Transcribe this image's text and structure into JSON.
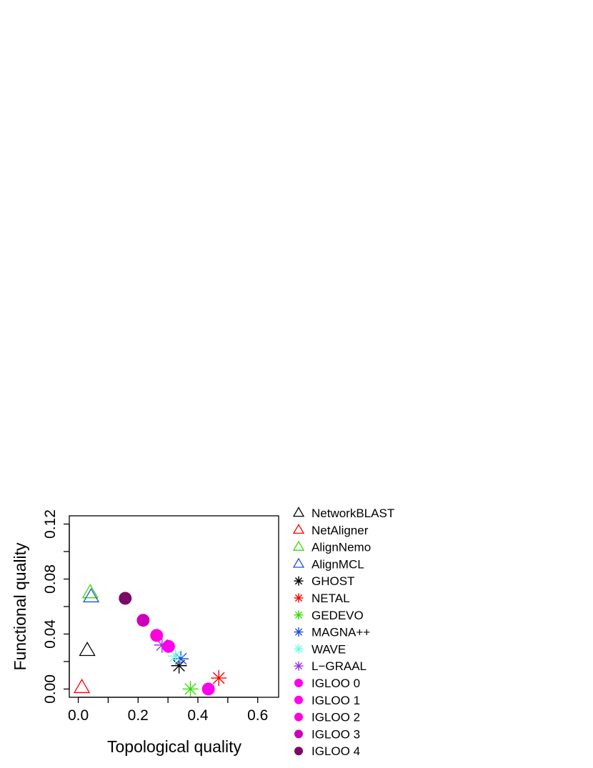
{
  "chart_data": {
    "type": "scatter",
    "title": "",
    "xlabel": "Topological quality",
    "ylabel": "Functional quality",
    "xlim": [
      -0.03,
      0.67
    ],
    "ylim": [
      -0.006,
      0.126
    ],
    "xticks": [
      0.0,
      0.1,
      0.2,
      0.3,
      0.4,
      0.5,
      0.6
    ],
    "xtick_labels": [
      "0.0",
      "",
      "0.2",
      "",
      "0.4",
      "",
      "0.6"
    ],
    "yticks": [
      0.0,
      0.02,
      0.04,
      0.06,
      0.08,
      0.1,
      0.12
    ],
    "ytick_labels": [
      "0.00",
      "",
      "0.04",
      "",
      "0.08",
      "",
      "0.12"
    ],
    "grid": false,
    "legend_position": "right",
    "series": [
      {
        "name": "NetworkBLAST",
        "marker": "triangle",
        "color": "#000000",
        "x": 0.03,
        "y": 0.028
      },
      {
        "name": "NetAligner",
        "marker": "triangle",
        "color": "#ff0000",
        "x": 0.012,
        "y": 0.001
      },
      {
        "name": "AlignNemo",
        "marker": "triangle",
        "color": "#33dd00",
        "x": 0.04,
        "y": 0.07
      },
      {
        "name": "AlignMCL",
        "marker": "triangle",
        "color": "#1f4fe0",
        "x": 0.043,
        "y": 0.067
      },
      {
        "name": "GHOST",
        "marker": "asterisk",
        "color": "#000000",
        "x": 0.337,
        "y": 0.017
      },
      {
        "name": "NETAL",
        "marker": "asterisk",
        "color": "#ff0000",
        "x": 0.47,
        "y": 0.008
      },
      {
        "name": "GEDEVO",
        "marker": "asterisk",
        "color": "#33dd00",
        "x": 0.375,
        "y": 0.0
      },
      {
        "name": "MAGNA++",
        "marker": "asterisk",
        "color": "#1f4fe0",
        "x": 0.343,
        "y": 0.022
      },
      {
        "name": "WAVE",
        "marker": "asterisk",
        "color": "#66ffdd",
        "x": 0.325,
        "y": 0.024
      },
      {
        "name": "L−GRAAL",
        "marker": "asterisk",
        "color": "#9933dd",
        "x": 0.28,
        "y": 0.032
      },
      {
        "name": "IGLOO 0",
        "marker": "circle",
        "color": "#ff00ee",
        "x": 0.435,
        "y": 0.0
      },
      {
        "name": "IGLOO 1",
        "marker": "circle",
        "color": "#ff00ee",
        "x": 0.302,
        "y": 0.031
      },
      {
        "name": "IGLOO 2",
        "marker": "circle",
        "color": "#ff00dd",
        "x": 0.262,
        "y": 0.039
      },
      {
        "name": "IGLOO 3",
        "marker": "circle",
        "color": "#cc00bb",
        "x": 0.217,
        "y": 0.05
      },
      {
        "name": "IGLOO 4",
        "marker": "circle",
        "color": "#7a0a66",
        "x": 0.157,
        "y": 0.066
      }
    ]
  }
}
